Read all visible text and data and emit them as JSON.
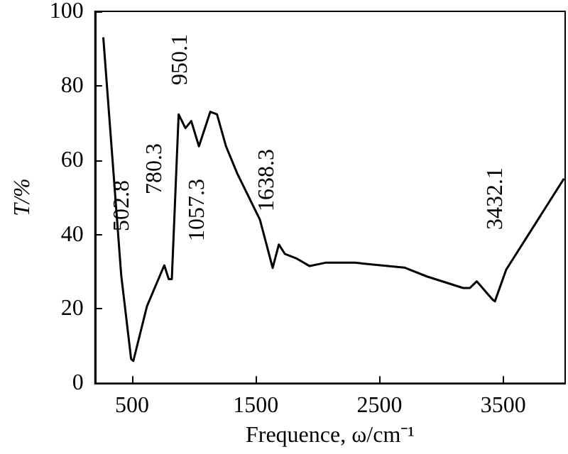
{
  "chart_data": {
    "type": "line",
    "xlabel": "Frequence, ω/cm⁻¹",
    "ylabel": "T/%",
    "x": [
      267,
      412,
      492,
      510,
      620,
      760,
      796,
      821,
      876,
      931,
      978,
      1040,
      1132,
      1186,
      1259,
      1351,
      1533,
      1636,
      1686,
      1734,
      1825,
      1935,
      2063,
      2300,
      2700,
      2883,
      3176,
      3230,
      3285,
      3413,
      3432,
      3523,
      3990
    ],
    "series": [
      {
        "color": "#000000",
        "values": [
          93,
          29,
          6.5,
          6,
          20.7,
          31.7,
          28,
          28,
          72.3,
          68.6,
          70.5,
          63.7,
          73,
          72.3,
          63.7,
          56.3,
          44,
          31,
          37.3,
          34.8,
          33.6,
          31.5,
          32.4,
          32.4,
          31.1,
          28.7,
          25.6,
          25.6,
          27.4,
          22.5,
          22,
          30.5,
          55
        ]
      }
    ],
    "xlim": [
      200,
      4000
    ],
    "xticks": [
      500,
      1500,
      2500,
      3500
    ],
    "ylim": [
      0,
      100
    ],
    "yticks": [
      0,
      20,
      40,
      60,
      80,
      100
    ],
    "grid": false,
    "annotations": [
      "502.8",
      "780.3",
      "950.1",
      "1057.3",
      "1638.3",
      "3432.1"
    ]
  }
}
